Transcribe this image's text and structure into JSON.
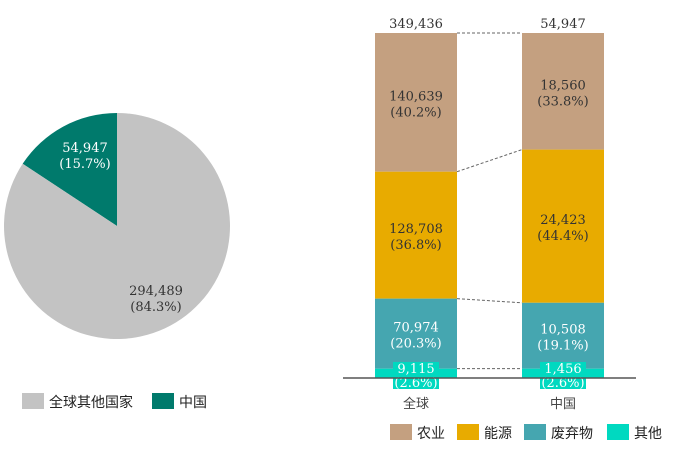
{
  "chart_data": [
    {
      "type": "pie",
      "start": "12 o'clock, counterclockwise",
      "slices": [
        {
          "name": "中国",
          "value": 54947,
          "value_label": "54,947",
          "pct_label": "(15.7%)",
          "color": "#007a6c",
          "label_color": "#ffffff"
        },
        {
          "name": "全球其他国家",
          "value": 294489,
          "value_label": "294,489",
          "pct_label": "(84.3%)",
          "color": "#c3c3c3",
          "label_color": "#333333"
        }
      ],
      "legend": {
        "position": "bottom",
        "entries": [
          "全球其他国家",
          "中国"
        ]
      }
    },
    {
      "type": "bar",
      "stacked": "100%",
      "categories": [
        "全球",
        "中国"
      ],
      "totals": [
        "349,436",
        "54,947"
      ],
      "series": [
        {
          "name": "农业",
          "color": "#c4a080",
          "values": [
            140639,
            18560
          ],
          "labels": [
            "140,639",
            "18,560"
          ],
          "pcts": [
            40.2,
            33.8
          ],
          "pct_labels": [
            "(40.2%)",
            "(33.8%)"
          ]
        },
        {
          "name": "能源",
          "color": "#e8ab00",
          "values": [
            128708,
            24423
          ],
          "labels": [
            "128,708",
            "24,423"
          ],
          "pcts": [
            36.8,
            44.4
          ],
          "pct_labels": [
            "(36.8%)",
            "(44.4%)"
          ]
        },
        {
          "name": "废弃物",
          "color": "#45a6b0",
          "values": [
            70974,
            10508
          ],
          "labels": [
            "70,974",
            "10,508"
          ],
          "pcts": [
            20.3,
            19.1
          ],
          "pct_labels": [
            "(20.3%)",
            "(19.1%)"
          ]
        },
        {
          "name": "其他",
          "color": "#00d9c0",
          "values": [
            9115,
            1456
          ],
          "labels": [
            "9,115",
            "1,456"
          ],
          "pcts": [
            2.6,
            2.6
          ],
          "pct_labels": [
            "(2.6%)",
            "(2.6%)"
          ]
        }
      ],
      "legend": {
        "position": "bottom",
        "entries": [
          "农业",
          "能源",
          "废弃物",
          "其他"
        ]
      }
    }
  ]
}
